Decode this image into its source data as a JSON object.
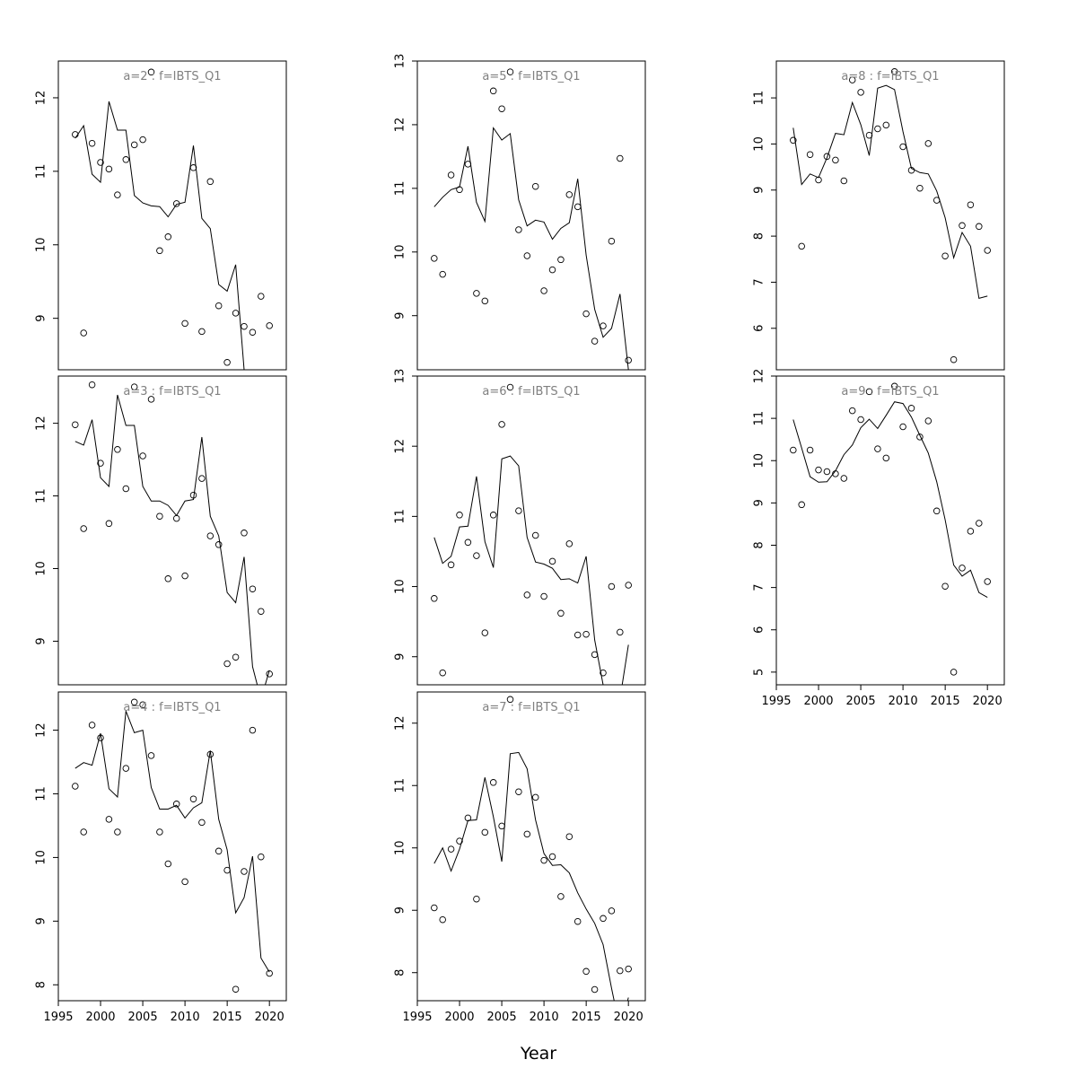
{
  "xlabel": "Year",
  "chart_data": [
    {
      "type": "scatter",
      "title": "a=2 : f=IBTS_Q1",
      "xlim": [
        1995,
        2022
      ],
      "ylim": [
        8.3,
        12.5
      ],
      "x_ticks": [],
      "y_ticks": [
        9,
        10,
        11,
        12
      ],
      "series": [
        {
          "type": "scatter",
          "x": [
            1997,
            1998,
            1999,
            2000,
            2001,
            2002,
            2003,
            2004,
            2005,
            2006,
            2007,
            2008,
            2009,
            2010,
            2011,
            2012,
            2013,
            2014,
            2015,
            2016,
            2017,
            2018,
            2019,
            2020
          ],
          "y": [
            11.5,
            8.8,
            11.38,
            11.12,
            11.03,
            10.68,
            11.16,
            11.36,
            11.43,
            12.35,
            9.92,
            10.11,
            10.56,
            8.93,
            11.05,
            8.82,
            10.86,
            9.17,
            8.4,
            9.07,
            8.89,
            8.81,
            9.3,
            8.9
          ]
        },
        {
          "type": "line",
          "x": [
            1997,
            1998,
            1999,
            2000,
            2001,
            2002,
            2003,
            2004,
            2005,
            2006,
            2007,
            2008,
            2009,
            2010,
            2011,
            2012,
            2013,
            2014,
            2015,
            2016,
            2017,
            2018,
            2019,
            2020
          ],
          "y": [
            11.45,
            11.62,
            10.96,
            10.85,
            11.95,
            11.56,
            11.56,
            10.67,
            10.57,
            10.53,
            10.52,
            10.38,
            10.55,
            10.58,
            11.35,
            10.36,
            10.22,
            9.46,
            9.37,
            9.73,
            8.3,
            8.1,
            8.2,
            8.3
          ]
        }
      ]
    },
    {
      "type": "scatter",
      "title": "a=3 : f=IBTS_Q1",
      "xlim": [
        1995,
        2022
      ],
      "ylim": [
        8.4,
        12.65
      ],
      "x_ticks": [],
      "y_ticks": [
        9,
        10,
        11,
        12
      ],
      "series": [
        {
          "type": "scatter",
          "x": [
            1997,
            1998,
            1999,
            2000,
            2001,
            2002,
            2003,
            2004,
            2005,
            2006,
            2007,
            2008,
            2009,
            2010,
            2011,
            2012,
            2013,
            2014,
            2015,
            2016,
            2017,
            2018,
            2019,
            2020
          ],
          "y": [
            11.98,
            10.55,
            12.53,
            11.45,
            10.62,
            11.64,
            11.1,
            12.5,
            11.55,
            12.33,
            10.72,
            9.86,
            10.69,
            9.9,
            11.01,
            11.24,
            10.45,
            10.33,
            8.69,
            8.78,
            10.49,
            9.72,
            9.41,
            8.55
          ]
        },
        {
          "type": "line",
          "x": [
            1997,
            1998,
            1999,
            2000,
            2001,
            2002,
            2003,
            2004,
            2005,
            2006,
            2007,
            2008,
            2009,
            2010,
            2011,
            2012,
            2013,
            2014,
            2015,
            2016,
            2017,
            2018,
            2019,
            2020
          ],
          "y": [
            11.75,
            11.7,
            12.05,
            11.25,
            11.13,
            12.39,
            11.97,
            11.97,
            11.13,
            10.93,
            10.93,
            10.87,
            10.73,
            10.93,
            10.95,
            11.81,
            10.72,
            10.45,
            9.67,
            9.53,
            10.16,
            8.65,
            8.2,
            8.6
          ]
        }
      ]
    },
    {
      "type": "scatter",
      "title": "a=4 : f=IBTS_Q1",
      "xlim": [
        1995,
        2022
      ],
      "ylim": [
        7.75,
        12.6
      ],
      "x_ticks": [
        1995,
        2000,
        2005,
        2010,
        2015,
        2020
      ],
      "y_ticks": [
        8,
        9,
        10,
        11,
        12
      ],
      "series": [
        {
          "type": "scatter",
          "x": [
            1997,
            1998,
            1999,
            2000,
            2001,
            2002,
            2003,
            2004,
            2005,
            2006,
            2007,
            2008,
            2009,
            2010,
            2011,
            2012,
            2013,
            2014,
            2015,
            2016,
            2017,
            2018,
            2019,
            2020
          ],
          "y": [
            11.12,
            10.4,
            12.08,
            11.88,
            10.6,
            10.4,
            11.4,
            12.44,
            12.4,
            11.6,
            10.4,
            9.9,
            10.84,
            9.62,
            10.92,
            10.55,
            11.62,
            10.1,
            9.8,
            7.93,
            9.78,
            12.0,
            10.01,
            8.18
          ]
        },
        {
          "type": "line",
          "x": [
            1997,
            1998,
            1999,
            2000,
            2001,
            2002,
            2003,
            2004,
            2005,
            2006,
            2007,
            2008,
            2009,
            2010,
            2011,
            2012,
            2013,
            2014,
            2015,
            2016,
            2017,
            2018,
            2019,
            2020
          ],
          "y": [
            11.4,
            11.49,
            11.45,
            11.95,
            11.08,
            10.95,
            12.3,
            11.96,
            12.0,
            11.1,
            10.76,
            10.76,
            10.82,
            10.62,
            10.78,
            10.86,
            11.68,
            10.6,
            10.12,
            9.13,
            9.37,
            10.02,
            8.42,
            8.2
          ]
        }
      ]
    },
    {
      "type": "scatter",
      "title": "a=5 : f=IBTS_Q1",
      "xlim": [
        1995,
        2022
      ],
      "ylim": [
        8.15,
        13.0
      ],
      "x_ticks": [],
      "y_ticks": [
        9,
        10,
        11,
        12,
        13
      ],
      "series": [
        {
          "type": "scatter",
          "x": [
            1997,
            1998,
            1999,
            2000,
            2001,
            2002,
            2003,
            2004,
            2005,
            2006,
            2007,
            2008,
            2009,
            2010,
            2011,
            2012,
            2013,
            2014,
            2015,
            2016,
            2017,
            2018,
            2019,
            2020
          ],
          "y": [
            9.9,
            9.65,
            11.21,
            10.98,
            11.38,
            9.35,
            9.23,
            12.53,
            12.25,
            12.83,
            10.35,
            9.94,
            11.03,
            9.39,
            9.72,
            9.88,
            10.9,
            10.71,
            9.03,
            8.6,
            8.84,
            10.17,
            11.47,
            8.3
          ]
        },
        {
          "type": "line",
          "x": [
            1997,
            1998,
            1999,
            2000,
            2001,
            2002,
            2003,
            2004,
            2005,
            2006,
            2007,
            2008,
            2009,
            2010,
            2011,
            2012,
            2013,
            2014,
            2015,
            2016,
            2017,
            2018,
            2019,
            2020
          ],
          "y": [
            10.71,
            10.86,
            10.98,
            11.02,
            11.66,
            10.78,
            10.48,
            11.95,
            11.76,
            11.86,
            10.82,
            10.41,
            10.5,
            10.47,
            10.2,
            10.37,
            10.46,
            11.15,
            9.95,
            9.1,
            8.66,
            8.8,
            9.34,
            8.15
          ]
        }
      ]
    },
    {
      "type": "scatter",
      "title": "a=6 : f=IBTS_Q1",
      "xlim": [
        1995,
        2022
      ],
      "ylim": [
        8.6,
        13.0
      ],
      "x_ticks": [],
      "y_ticks": [
        9,
        10,
        11,
        12,
        13
      ],
      "series": [
        {
          "type": "scatter",
          "x": [
            1997,
            1998,
            1999,
            2000,
            2001,
            2002,
            2003,
            2004,
            2005,
            2006,
            2007,
            2008,
            2009,
            2010,
            2011,
            2012,
            2013,
            2014,
            2015,
            2016,
            2017,
            2018,
            2019,
            2020
          ],
          "y": [
            9.83,
            8.77,
            10.31,
            11.02,
            10.63,
            10.44,
            9.34,
            11.02,
            12.31,
            12.84,
            11.08,
            9.88,
            10.73,
            9.86,
            10.36,
            9.62,
            10.61,
            9.31,
            9.32,
            9.03,
            8.77,
            10.0,
            9.35,
            10.02
          ]
        },
        {
          "type": "line",
          "x": [
            1997,
            1998,
            1999,
            2000,
            2001,
            2002,
            2003,
            2004,
            2005,
            2006,
            2007,
            2008,
            2009,
            2010,
            2011,
            2012,
            2013,
            2014,
            2015,
            2016,
            2017,
            2018,
            2019,
            2020
          ],
          "y": [
            10.7,
            10.33,
            10.43,
            10.85,
            10.86,
            11.57,
            10.64,
            10.27,
            11.82,
            11.86,
            11.72,
            10.7,
            10.35,
            10.32,
            10.26,
            10.1,
            10.11,
            10.05,
            10.43,
            9.24,
            8.6,
            8.4,
            8.4,
            9.17
          ]
        }
      ]
    },
    {
      "type": "scatter",
      "title": "a=7 : f=IBTS_Q1",
      "xlim": [
        1995,
        2022
      ],
      "ylim": [
        7.55,
        12.5
      ],
      "x_ticks": [
        1995,
        2000,
        2005,
        2010,
        2015,
        2020
      ],
      "y_ticks": [
        8,
        9,
        10,
        11,
        12
      ],
      "series": [
        {
          "type": "scatter",
          "x": [
            1997,
            1998,
            1999,
            2000,
            2001,
            2002,
            2003,
            2004,
            2005,
            2006,
            2007,
            2008,
            2009,
            2010,
            2011,
            2012,
            2013,
            2014,
            2015,
            2016,
            2017,
            2018,
            2019,
            2020
          ],
          "y": [
            9.04,
            8.85,
            9.98,
            10.11,
            10.48,
            9.18,
            10.25,
            11.05,
            10.35,
            12.38,
            10.9,
            10.22,
            10.81,
            9.8,
            9.86,
            9.22,
            10.18,
            8.82,
            8.02,
            7.73,
            8.87,
            8.99,
            8.03,
            8.06
          ]
        },
        {
          "type": "line",
          "x": [
            1997,
            1998,
            1999,
            2000,
            2001,
            2002,
            2003,
            2004,
            2005,
            2006,
            2007,
            2008,
            2009,
            2010,
            2011,
            2012,
            2013,
            2014,
            2015,
            2016,
            2017,
            2018,
            2019,
            2020
          ],
          "y": [
            9.75,
            10.0,
            9.63,
            9.98,
            10.44,
            10.45,
            11.13,
            10.5,
            9.78,
            11.51,
            11.53,
            11.27,
            10.45,
            9.91,
            9.72,
            9.73,
            9.6,
            9.28,
            9.02,
            8.79,
            8.45,
            7.75,
            7.1,
            7.6
          ]
        }
      ]
    },
    {
      "type": "scatter",
      "title": "a=8 : f=IBTS_Q1",
      "xlim": [
        1995,
        2022
      ],
      "ylim": [
        5.1,
        11.8
      ],
      "x_ticks": [],
      "y_ticks": [
        6,
        7,
        8,
        9,
        10,
        11
      ],
      "series": [
        {
          "type": "scatter",
          "x": [
            1997,
            1998,
            1999,
            2000,
            2001,
            2002,
            2003,
            2004,
            2005,
            2006,
            2007,
            2008,
            2009,
            2010,
            2011,
            2012,
            2013,
            2014,
            2015,
            2016,
            2017,
            2018,
            2019,
            2020
          ],
          "y": [
            10.08,
            7.78,
            9.77,
            9.22,
            9.73,
            9.65,
            9.2,
            11.39,
            11.12,
            10.19,
            10.33,
            10.41,
            11.57,
            9.94,
            9.43,
            9.04,
            10.01,
            8.78,
            7.57,
            5.32,
            8.23,
            8.68,
            8.21,
            7.69
          ]
        },
        {
          "type": "line",
          "x": [
            1997,
            1998,
            1999,
            2000,
            2001,
            2002,
            2003,
            2004,
            2005,
            2006,
            2007,
            2008,
            2009,
            2010,
            2011,
            2012,
            2013,
            2014,
            2015,
            2016,
            2017,
            2018,
            2019,
            2020
          ],
          "y": [
            10.35,
            9.12,
            9.35,
            9.27,
            9.7,
            10.23,
            10.2,
            10.9,
            10.42,
            9.75,
            11.21,
            11.27,
            11.18,
            10.27,
            9.47,
            9.38,
            9.35,
            8.98,
            8.4,
            7.53,
            8.08,
            7.78,
            6.65,
            6.7
          ]
        }
      ]
    },
    {
      "type": "scatter",
      "title": "a=9 : f=IBTS_Q1",
      "xlim": [
        1995,
        2022
      ],
      "ylim": [
        4.7,
        12.0
      ],
      "x_ticks": [
        1995,
        2000,
        2005,
        2010,
        2015,
        2020
      ],
      "y_ticks": [
        5,
        6,
        7,
        8,
        9,
        10,
        11,
        12
      ],
      "series": [
        {
          "type": "scatter",
          "x": [
            1997,
            1998,
            1999,
            2000,
            2001,
            2002,
            2003,
            2004,
            2005,
            2006,
            2007,
            2008,
            2009,
            2010,
            2011,
            2012,
            2013,
            2014,
            2015,
            2016,
            2017,
            2018,
            2019,
            2020
          ],
          "y": [
            10.25,
            8.96,
            10.25,
            9.78,
            9.74,
            9.69,
            9.58,
            11.18,
            10.97,
            11.63,
            10.28,
            10.06,
            11.76,
            10.8,
            11.24,
            10.56,
            10.94,
            8.81,
            7.03,
            5.0,
            7.46,
            8.33,
            8.52,
            7.14
          ]
        },
        {
          "type": "line",
          "x": [
            1997,
            1998,
            1999,
            2000,
            2001,
            2002,
            2003,
            2004,
            2005,
            2006,
            2007,
            2008,
            2009,
            2010,
            2011,
            2012,
            2013,
            2014,
            2015,
            2016,
            2017,
            2018,
            2019,
            2020
          ],
          "y": [
            10.97,
            10.3,
            9.62,
            9.49,
            9.5,
            9.76,
            10.14,
            10.37,
            10.78,
            10.98,
            10.76,
            11.07,
            11.39,
            11.35,
            11.03,
            10.6,
            10.18,
            9.5,
            8.6,
            7.53,
            7.27,
            7.41,
            6.88,
            6.77
          ]
        }
      ]
    }
  ]
}
